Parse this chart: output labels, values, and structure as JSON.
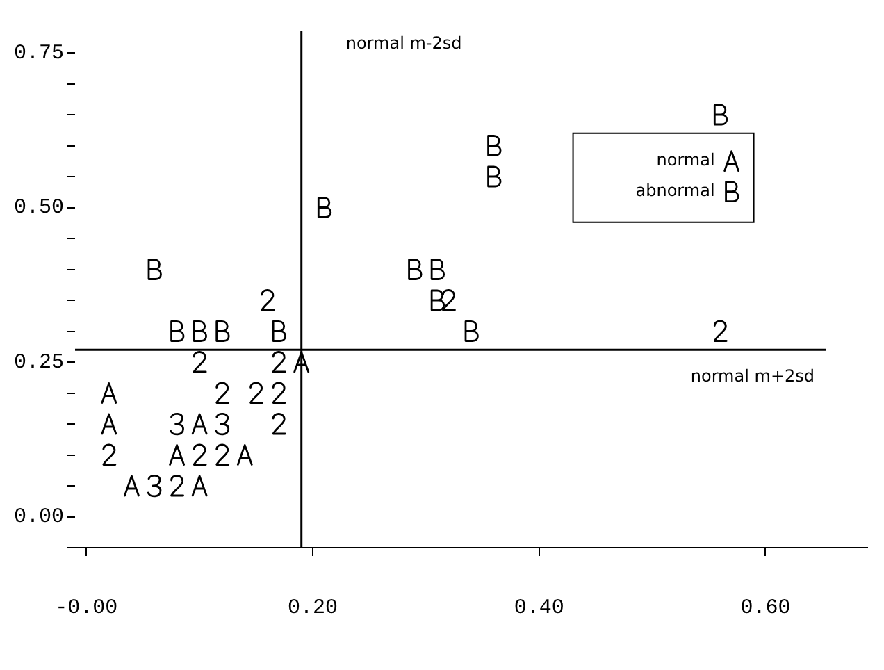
{
  "chart_data": {
    "type": "scatter",
    "legend": "right",
    "xlim": [
      -0.01,
      0.69
    ],
    "ylim": [
      -0.05,
      0.75
    ],
    "xticks": [
      {
        "value": 0,
        "label": "-0.00"
      },
      {
        "value": 0.2,
        "label": "0.20"
      },
      {
        "value": 0.4,
        "label": "0.40"
      },
      {
        "value": 0.6,
        "label": "0.60"
      }
    ],
    "yticks": [
      {
        "value": -0.05,
        "label": null
      },
      {
        "value": 0,
        "label": "0.00"
      },
      {
        "value": 0.05,
        "label": null
      },
      {
        "value": 0.1,
        "label": null
      },
      {
        "value": 0.15,
        "label": null
      },
      {
        "value": 0.2,
        "label": null
      },
      {
        "value": 0.25,
        "label": "0.25"
      },
      {
        "value": 0.3,
        "label": null
      },
      {
        "value": 0.35,
        "label": null
      },
      {
        "value": 0.4,
        "label": null
      },
      {
        "value": 0.45,
        "label": null
      },
      {
        "value": 0.5,
        "label": "0.50"
      },
      {
        "value": 0.55,
        "label": null
      },
      {
        "value": 0.6,
        "label": null
      },
      {
        "value": 0.65,
        "label": null
      },
      {
        "value": 0.7,
        "label": null
      },
      {
        "value": 0.75,
        "label": "0.75"
      }
    ],
    "series": [
      {
        "name": "normal",
        "color": "#000000",
        "x": [
          0.19,
          0.02,
          0.02,
          0.1,
          0.14,
          0.04,
          0.1,
          0.08
        ],
        "values": [
          0.25,
          0.2,
          0.15,
          0.15,
          0.1,
          0.05,
          0.05,
          0.1
        ]
      },
      {
        "name": "abnormal",
        "color": "#000000",
        "x": [
          0.06,
          0.08,
          0.1,
          0.12,
          0.17,
          0.21,
          0.29,
          0.31,
          0.31,
          0.34,
          0.36,
          0.36,
          0.56
        ],
        "values": [
          0.4,
          0.3,
          0.3,
          0.3,
          0.3,
          0.5,
          0.4,
          0.4,
          0.35,
          0.3,
          0.6,
          0.55,
          0.65
        ]
      },
      {
        "color": "#000000",
        "x": [
          0.16,
          0.1,
          0.17,
          0.12,
          0.15,
          0.17,
          0.17,
          0.02,
          0.1,
          0.12,
          0.08,
          0.32,
          0.56
        ],
        "values": [
          0.35,
          0.25,
          0.25,
          0.2,
          0.2,
          0.2,
          0.15,
          0.1,
          0.1,
          0.1,
          0.05,
          0.35,
          0.3
        ]
      },
      {
        "color": "#000000",
        "x": [
          0.08,
          0.12,
          0.06
        ],
        "values": [
          0.15,
          0.15,
          0.05
        ]
      }
    ],
    "ref_lines": [
      {
        "axis": "x",
        "value": 0.19,
        "label": "normal m-2sd"
      },
      {
        "axis": "y",
        "value": 0.27,
        "label": "normal m+2sd"
      }
    ]
  }
}
